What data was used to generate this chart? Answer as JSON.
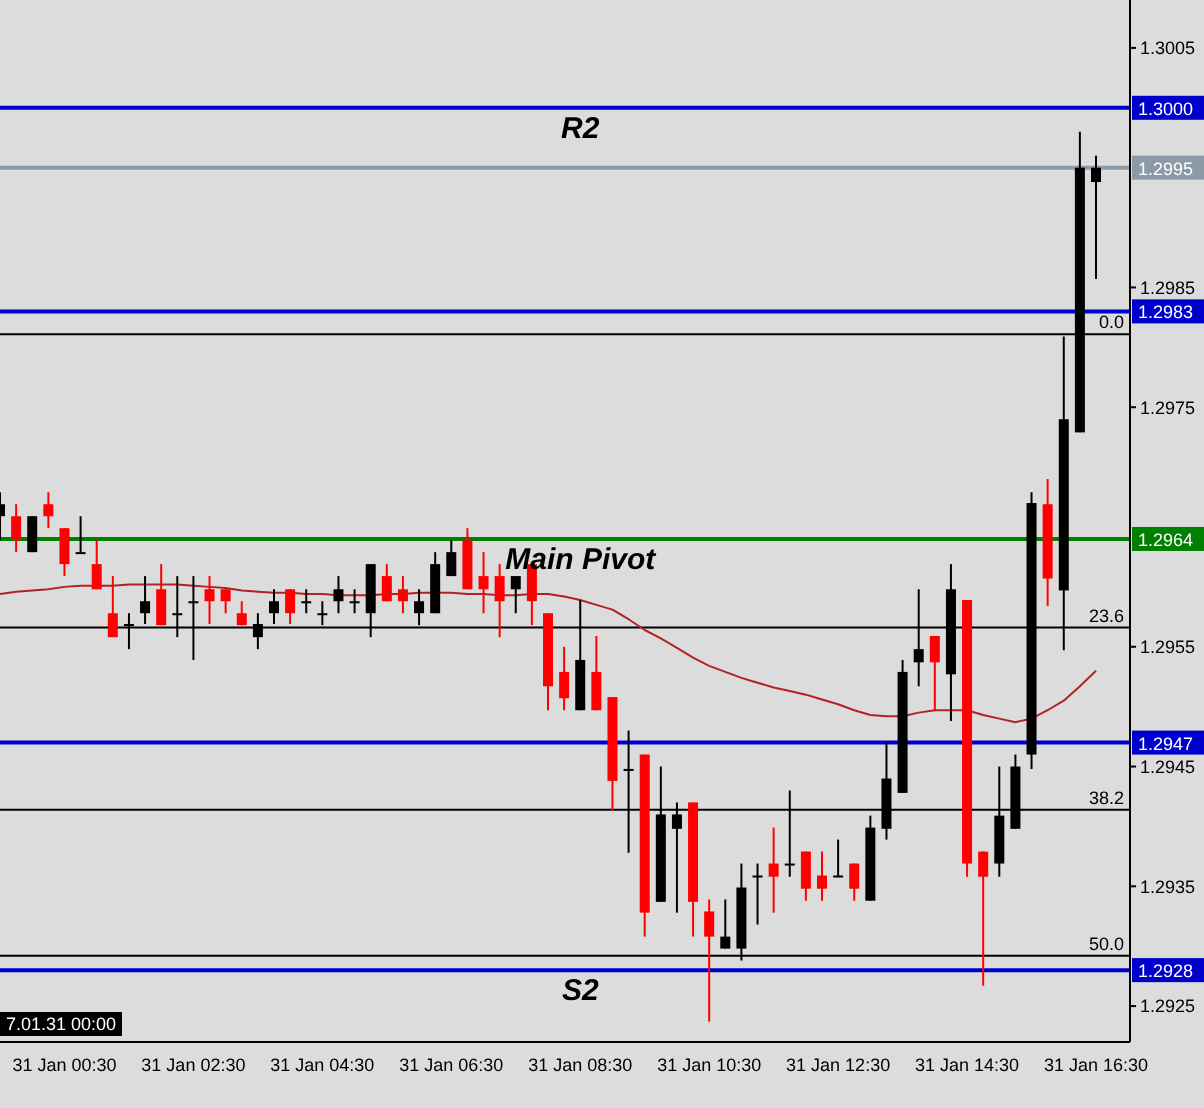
{
  "chart_data": {
    "type": "candlestick",
    "categories": [
      null,
      null,
      null,
      null,
      "31 Jan 00:30",
      null,
      null,
      null,
      null,
      null,
      null,
      null,
      "31 Jan 02:30",
      null,
      null,
      null,
      null,
      null,
      null,
      null,
      "31 Jan 04:30",
      null,
      null,
      null,
      null,
      null,
      null,
      null,
      "31 Jan 06:30",
      null,
      null,
      null,
      null,
      null,
      null,
      null,
      "31 Jan 08:30",
      null,
      null,
      null,
      null,
      null,
      null,
      null,
      "31 Jan 10:30",
      null,
      null,
      null,
      null,
      null,
      null,
      null,
      "31 Jan 12:30",
      null,
      null,
      null,
      null,
      null,
      null,
      null,
      "31 Jan 14:30",
      null,
      null,
      null,
      null,
      null,
      null,
      null,
      "31 Jan 16:30"
    ],
    "ohlc": [
      [
        1.29659,
        1.29679,
        1.29639,
        1.29669
      ],
      [
        1.29659,
        1.29669,
        1.29629,
        1.29639
      ],
      [
        1.29629,
        1.29659,
        1.29629,
        1.29659
      ],
      [
        1.29669,
        1.29679,
        1.29649,
        1.29659
      ],
      [
        1.29649,
        1.29649,
        1.29609,
        1.29619
      ],
      [
        1.29628,
        1.29659,
        1.29628,
        1.29629
      ],
      [
        1.29619,
        1.29639,
        1.29598,
        1.29598
      ],
      [
        1.29578,
        1.29609,
        1.29558,
        1.29558
      ],
      [
        1.29568,
        1.29578,
        1.29548,
        1.29569
      ],
      [
        1.29578,
        1.29609,
        1.29569,
        1.29588
      ],
      [
        1.29598,
        1.29619,
        1.29568,
        1.29568
      ],
      [
        1.29577,
        1.29609,
        1.29558,
        1.29578
      ],
      [
        1.29587,
        1.29609,
        1.29539,
        1.29588
      ],
      [
        1.29598,
        1.29609,
        1.29569,
        1.29588
      ],
      [
        1.29598,
        1.29598,
        1.29578,
        1.29588
      ],
      [
        1.29578,
        1.29588,
        1.29568,
        1.29568
      ],
      [
        1.29558,
        1.29578,
        1.29548,
        1.29569
      ],
      [
        1.29578,
        1.29598,
        1.29569,
        1.29588
      ],
      [
        1.29598,
        1.29598,
        1.29569,
        1.29578
      ],
      [
        1.29587,
        1.29598,
        1.29578,
        1.29588
      ],
      [
        1.29577,
        1.29588,
        1.29568,
        1.29578
      ],
      [
        1.29588,
        1.29609,
        1.29578,
        1.29598
      ],
      [
        1.29587,
        1.29598,
        1.29578,
        1.29588
      ],
      [
        1.29578,
        1.29619,
        1.29558,
        1.29619
      ],
      [
        1.29609,
        1.29619,
        1.29588,
        1.29588
      ],
      [
        1.29598,
        1.29609,
        1.29578,
        1.29588
      ],
      [
        1.29578,
        1.29598,
        1.29568,
        1.29588
      ],
      [
        1.29578,
        1.29629,
        1.29578,
        1.29619
      ],
      [
        1.29609,
        1.29639,
        1.29609,
        1.29629
      ],
      [
        1.29639,
        1.29649,
        1.29598,
        1.29598
      ],
      [
        1.29609,
        1.29629,
        1.29578,
        1.29598
      ],
      [
        1.29609,
        1.29619,
        1.29558,
        1.29588
      ],
      [
        1.29598,
        1.29609,
        1.29578,
        1.29609
      ],
      [
        1.29619,
        1.29619,
        1.29568,
        1.29588
      ],
      [
        1.29578,
        1.29578,
        1.29497,
        1.29517
      ],
      [
        1.29529,
        1.2955,
        1.29497,
        1.29507
      ],
      [
        1.29497,
        1.29589,
        1.29497,
        1.29539
      ],
      [
        1.29529,
        1.29559,
        1.29497,
        1.29497
      ],
      [
        1.29508,
        1.29508,
        1.29413,
        1.29438
      ],
      [
        1.29447,
        1.2948,
        1.29378,
        1.29448
      ],
      [
        1.2946,
        1.2946,
        1.29308,
        1.29328
      ],
      [
        1.29337,
        1.2945,
        1.29337,
        1.2941
      ],
      [
        1.29398,
        1.2942,
        1.29328,
        1.2941
      ],
      [
        1.2942,
        1.2942,
        1.29308,
        1.29337
      ],
      [
        1.29329,
        1.29339,
        1.29237,
        1.29308
      ],
      [
        1.29298,
        1.29339,
        1.29298,
        1.29308
      ],
      [
        1.29298,
        1.29369,
        1.29288,
        1.29349
      ],
      [
        1.29358,
        1.29369,
        1.29318,
        1.29359
      ],
      [
        1.29369,
        1.29399,
        1.29328,
        1.29358
      ],
      [
        1.29368,
        1.2943,
        1.29358,
        1.29369
      ],
      [
        1.29379,
        1.29379,
        1.29338,
        1.29348
      ],
      [
        1.29359,
        1.29379,
        1.29338,
        1.29348
      ],
      [
        1.29358,
        1.29389,
        1.29358,
        1.29359
      ],
      [
        1.29369,
        1.29369,
        1.29338,
        1.29348
      ],
      [
        1.29338,
        1.29409,
        1.29338,
        1.29399
      ],
      [
        1.29398,
        1.2947,
        1.29389,
        1.2944
      ],
      [
        1.29428,
        1.29539,
        1.29428,
        1.29529
      ],
      [
        1.29537,
        1.29598,
        1.29517,
        1.29548
      ],
      [
        1.29559,
        1.29559,
        1.29497,
        1.29537
      ],
      [
        1.29527,
        1.29619,
        1.29488,
        1.29598
      ],
      [
        1.29589,
        1.29589,
        1.29358,
        1.29369
      ],
      [
        1.29379,
        1.29379,
        1.29267,
        1.29358
      ],
      [
        1.29369,
        1.2945,
        1.29358,
        1.29409
      ],
      [
        1.29398,
        1.2946,
        1.29398,
        1.2945
      ],
      [
        1.2946,
        1.29679,
        1.29448,
        1.2967
      ],
      [
        1.29669,
        1.2969,
        1.29584,
        1.29607
      ],
      [
        1.29597,
        1.29809,
        1.29547,
        1.2974
      ],
      [
        1.29729,
        1.2998,
        1.29729,
        1.2995
      ],
      [
        1.29938,
        1.2996,
        1.29857,
        1.2995
      ]
    ],
    "colors": [
      "#000000",
      "#ff0000",
      "#000000",
      "#ff0000",
      "#ff0000",
      "#000000",
      "#ff0000",
      "#ff0000",
      "#000000",
      "#000000",
      "#ff0000",
      "#000000",
      "#000000",
      "#ff0000",
      "#ff0000",
      "#ff0000",
      "#000000",
      "#000000",
      "#ff0000",
      "#000000",
      "#000000",
      "#000000",
      "#000000",
      "#000000",
      "#ff0000",
      "#ff0000",
      "#000000",
      "#000000",
      "#000000",
      "#ff0000",
      "#ff0000",
      "#ff0000",
      "#000000",
      "#ff0000",
      "#ff0000",
      "#ff0000",
      "#000000",
      "#ff0000",
      "#ff0000",
      "#000000",
      "#ff0000",
      "#000000",
      "#000000",
      "#ff0000",
      "#ff0000",
      "#000000",
      "#000000",
      "#000000",
      "#ff0000",
      "#000000",
      "#ff0000",
      "#ff0000",
      "#000000",
      "#ff0000",
      "#000000",
      "#000000",
      "#000000",
      "#000000",
      "#ff0000",
      "#000000",
      "#ff0000",
      "#ff0000",
      "#000000",
      "#000000",
      "#000000",
      "#ff0000",
      "#000000",
      "#000000",
      "#000000"
    ],
    "series": [
      {
        "type": "line",
        "color": "#b22222",
        "values": [
          1.29594,
          1.29596,
          1.29597,
          1.29598,
          1.296,
          1.29601,
          1.29601,
          1.29601,
          1.29602,
          1.29602,
          1.29602,
          1.29602,
          1.29601,
          1.296,
          1.29599,
          1.29597,
          1.29596,
          1.29595,
          1.29595,
          1.29594,
          1.29594,
          1.29593,
          1.29593,
          1.29593,
          1.29594,
          1.29594,
          1.29595,
          1.29595,
          1.29595,
          1.29594,
          1.29594,
          1.29593,
          1.29593,
          1.29594,
          1.29594,
          1.29592,
          1.29589,
          1.29585,
          1.29581,
          1.29573,
          1.29564,
          1.29557,
          1.29549,
          1.29541,
          1.29534,
          1.29529,
          1.29524,
          1.2952,
          1.29516,
          1.29513,
          1.2951,
          1.29506,
          1.29502,
          1.29497,
          1.29493,
          1.29492,
          1.29492,
          1.29495,
          1.29497,
          1.29497,
          1.29497,
          1.29493,
          1.2949,
          1.29487,
          1.2949,
          1.29497,
          1.29505,
          1.29517,
          1.2953
        ]
      }
    ],
    "ylim": [
      1.2922,
      1.3009
    ],
    "yticks": [
      1.2925,
      1.2935,
      1.2945,
      1.2955,
      1.2975,
      1.2985,
      1.3005
    ],
    "grid": false,
    "legend": false,
    "ref_lines": [
      {
        "axis": "y",
        "value": 1.3,
        "label": "1.3000",
        "color": "#0000cc"
      },
      {
        "axis": "y",
        "value": 1.2983,
        "label": "1.2983",
        "color": "#0000cc"
      },
      {
        "axis": "y",
        "value": 1.2964,
        "label": "1.2964",
        "color": "#008000"
      },
      {
        "axis": "y",
        "value": 1.2947,
        "label": "1.2947",
        "color": "#0000cc"
      },
      {
        "axis": "y",
        "value": 1.2928,
        "label": "1.2928",
        "color": "#0000cc"
      },
      {
        "axis": "y",
        "value": 1.2995,
        "label": "1.2995",
        "color": "#8c9aa8"
      },
      {
        "axis": "y",
        "value": 1.29811,
        "color": "#000000"
      },
      {
        "axis": "y",
        "value": 1.29566,
        "color": "#000000"
      },
      {
        "axis": "y",
        "value": 1.29414,
        "color": "#000000"
      },
      {
        "axis": "y",
        "value": 1.29292,
        "color": "#000000"
      }
    ],
    "annotations": [
      {
        "text": "R2",
        "x": "31 Jan 08:30",
        "y": 1.3
      },
      {
        "text": "Main Pivot",
        "x": "31 Jan 08:30",
        "y": 1.2964
      },
      {
        "text": "S2",
        "x": "31 Jan 08:30",
        "y": 1.2928
      },
      {
        "text": "0.0",
        "y": 1.29811
      },
      {
        "text": "23.6",
        "y": 1.29566
      },
      {
        "text": "38.2",
        "y": 1.29414
      },
      {
        "text": "50.0",
        "y": 1.29292
      },
      "7.01.31 00:00"
    ]
  }
}
